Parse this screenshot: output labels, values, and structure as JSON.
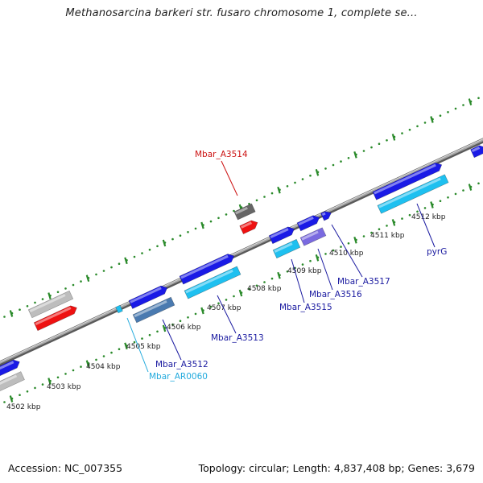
{
  "title": "Methanosarcina barkeri str. fusaro chromosome 1, complete se...",
  "footer": {
    "accession": "Accession: NC_007355",
    "summary": "Topology: circular; Length: 4,837,408 bp; Genes: 3,679"
  },
  "colors": {
    "backbone": "#8c8c8c",
    "tick": "#2a8a2a",
    "gene_blue": "#1a1ae6",
    "gene_cyan": "#1ec0f0",
    "gene_red": "#ee1111",
    "gene_gray": "#bdbdbd",
    "gene_dark_gray": "#666666",
    "gene_slate": "#4a7ab0",
    "gene_violet": "#7a6ae0",
    "label_blue": "#1a1aa0",
    "label_red": "#cc1111",
    "label_cyan": "#22aadd"
  },
  "kbp_labels": [
    {
      "text": "4502 kbp"
    },
    {
      "text": "4503 kbp"
    },
    {
      "text": "4504 kbp"
    },
    {
      "text": "4505 kbp"
    },
    {
      "text": "4506 kbp"
    },
    {
      "text": "4507 kbp"
    },
    {
      "text": "4508 kbp"
    },
    {
      "text": "4509 kbp"
    },
    {
      "text": "4510 kbp"
    },
    {
      "text": "4511 kbp"
    },
    {
      "text": "4512 kbp"
    }
  ],
  "gene_labels": [
    {
      "text": "Mbar_A3514",
      "color": "label_red"
    },
    {
      "text": "Mbar_A3512",
      "color": "label_blue"
    },
    {
      "text": "Mbar_AR0060",
      "color": "label_cyan"
    },
    {
      "text": "Mbar_A3513",
      "color": "label_blue"
    },
    {
      "text": "Mbar_A3515",
      "color": "label_blue"
    },
    {
      "text": "Mbar_A3516",
      "color": "label_blue"
    },
    {
      "text": "Mbar_A3517",
      "color": "label_blue"
    },
    {
      "text": "pyrG",
      "color": "label_blue"
    }
  ]
}
